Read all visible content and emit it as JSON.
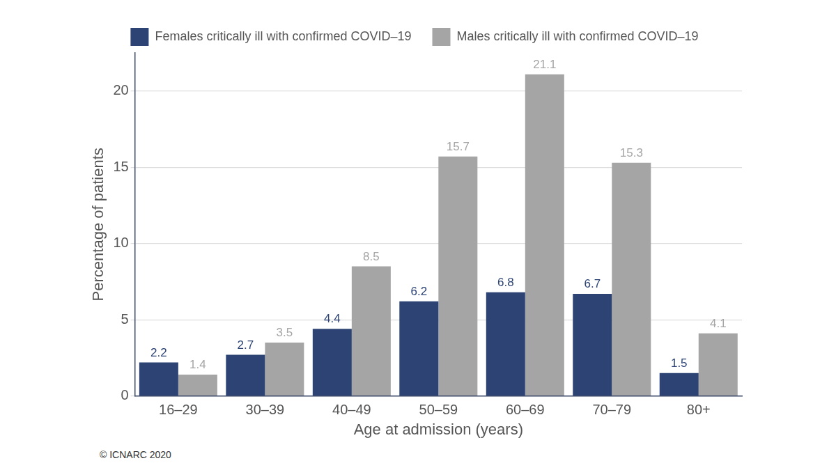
{
  "chart_data": {
    "type": "bar",
    "x_label": "Age at admission (years)",
    "y_label": "Percentage of patients",
    "caption": "© ICNARC 2020",
    "categories": [
      "16–29",
      "30–39",
      "40–49",
      "50–59",
      "60–69",
      "70–79",
      "80+"
    ],
    "series": [
      {
        "name": "Females critically ill with confirmed COVID–19",
        "color": "#2c4374",
        "values": [
          2.2,
          2.7,
          4.4,
          6.2,
          6.8,
          6.7,
          1.5
        ]
      },
      {
        "name": "Males critically ill with confirmed COVID–19",
        "color": "#a5a5a5",
        "values": [
          1.4,
          3.5,
          8.5,
          15.7,
          21.1,
          15.3,
          4.1
        ]
      }
    ],
    "ylim": [
      0,
      22.5
    ],
    "yticks": [
      0,
      5,
      10,
      15,
      20
    ],
    "grid": true,
    "legend": "top",
    "data_labels": true
  }
}
